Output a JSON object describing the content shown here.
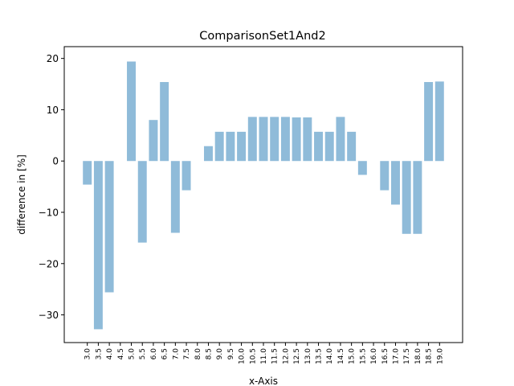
{
  "chart_data": {
    "type": "bar",
    "title": "ComparisonSet1And2",
    "xlabel": "x-Axis",
    "ylabel": "difference in [%]",
    "ylim": [
      -35.4,
      22.3
    ],
    "yticks": [
      -30,
      -20,
      -10,
      0,
      10,
      20
    ],
    "ytick_labels": [
      "−30",
      "−20",
      "−10",
      "0",
      "10",
      "20"
    ],
    "grid": false,
    "bar_color": "#8fbbd9",
    "categories": [
      "3.0",
      "3.5",
      "4.0",
      "4.5",
      "5.0",
      "5.5",
      "6.0",
      "6.5",
      "7.0",
      "7.5",
      "8.0",
      "8.5",
      "9.0",
      "9.5",
      "10.0",
      "10.5",
      "11.0",
      "11.5",
      "12.0",
      "12.5",
      "13.0",
      "13.5",
      "14.0",
      "14.5",
      "15.0",
      "15.5",
      "16.0",
      "16.5",
      "17.0",
      "17.5",
      "18.0",
      "18.5",
      "19.0"
    ],
    "values": [
      -4.6,
      -32.8,
      -25.6,
      0,
      19.4,
      -15.9,
      8.0,
      15.4,
      -14.0,
      -5.7,
      0,
      2.9,
      5.7,
      5.7,
      5.7,
      8.6,
      8.6,
      8.6,
      8.6,
      8.5,
      8.5,
      5.7,
      5.7,
      8.6,
      5.7,
      -2.7,
      0,
      -5.7,
      -8.5,
      -14.2,
      -14.2,
      15.4,
      15.5
    ]
  }
}
